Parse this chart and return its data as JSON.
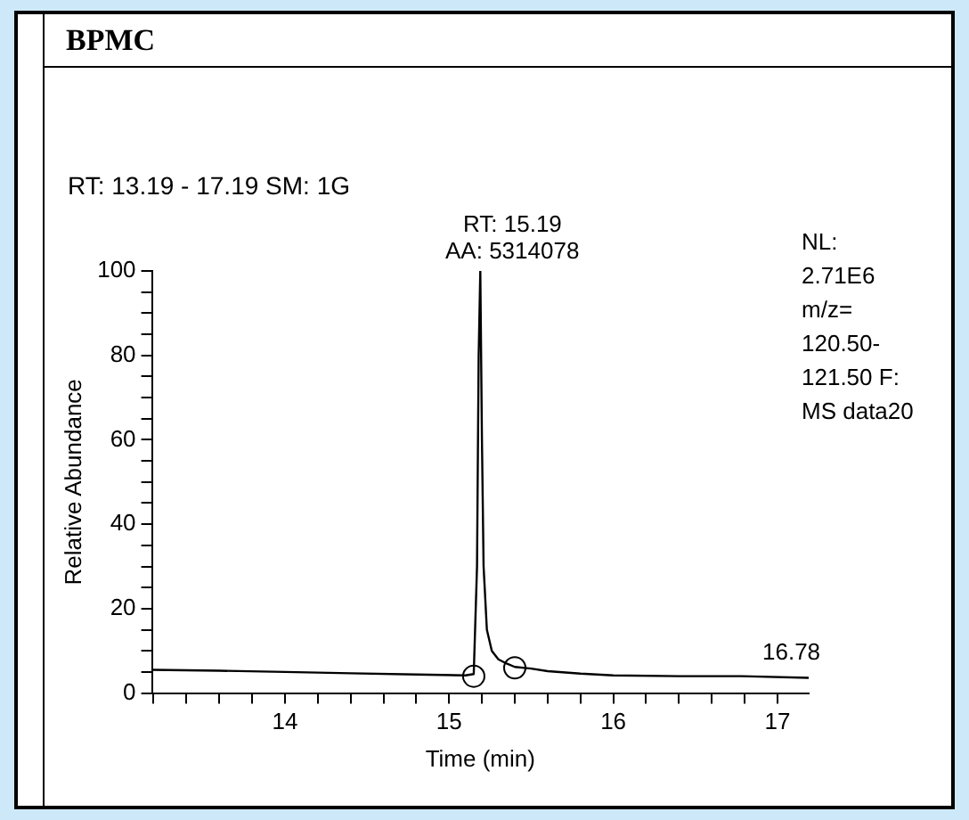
{
  "chart_data": {
    "type": "line",
    "title": "BPMC",
    "xlabel": "Time (min)",
    "ylabel": "Relative Abundance",
    "xlim": [
      13.19,
      17.19
    ],
    "xticks": [
      {
        "value": 13.2,
        "label": null
      },
      {
        "value": 13.4,
        "label": null
      },
      {
        "value": 13.6,
        "label": null
      },
      {
        "value": 13.8,
        "label": null
      },
      14,
      {
        "value": 14.2,
        "label": null
      },
      {
        "value": 14.4,
        "label": null
      },
      {
        "value": 14.6,
        "label": null
      },
      {
        "value": 14.8,
        "label": null
      },
      15,
      {
        "value": 15.2,
        "label": null
      },
      {
        "value": 15.4,
        "label": null
      },
      {
        "value": 15.6,
        "label": null
      },
      {
        "value": 15.8,
        "label": null
      },
      16,
      {
        "value": 16.2,
        "label": null
      },
      {
        "value": 16.4,
        "label": null
      },
      {
        "value": 16.6,
        "label": null
      },
      {
        "value": 16.8,
        "label": null
      },
      17
    ],
    "ylim": [
      0,
      100
    ],
    "yticks": [
      0,
      {
        "value": 5,
        "label": null
      },
      {
        "value": 10,
        "label": null
      },
      {
        "value": 15,
        "label": null
      },
      20,
      {
        "value": 25,
        "label": null
      },
      {
        "value": 30,
        "label": null
      },
      {
        "value": 35,
        "label": null
      },
      40,
      {
        "value": 45,
        "label": null
      },
      {
        "value": 50,
        "label": null
      },
      {
        "value": 55,
        "label": null
      },
      60,
      {
        "value": 65,
        "label": null
      },
      {
        "value": 70,
        "label": null
      },
      {
        "value": 75,
        "label": null
      },
      80,
      {
        "value": 85,
        "label": null
      },
      {
        "value": 90,
        "label": null
      },
      {
        "value": 95,
        "label": null
      },
      100
    ],
    "grid": false,
    "legend": false,
    "line_style": "solid",
    "series": [
      {
        "type": "line",
        "color": "#000000",
        "marker": "none",
        "x": [
          13.19,
          13.6,
          14.0,
          14.4,
          14.8,
          15.1,
          15.15,
          15.17,
          15.18,
          15.19,
          15.2,
          15.21,
          15.23,
          15.26,
          15.3,
          15.35,
          15.4,
          15.5,
          15.6,
          15.8,
          16.0,
          16.4,
          16.78,
          17.19
        ],
        "values": [
          5.5,
          5.3,
          5.0,
          4.7,
          4.4,
          4.2,
          4.5,
          30,
          80,
          100,
          60,
          30,
          15,
          10,
          8,
          7,
          6.2,
          5.8,
          5.2,
          4.6,
          4.2,
          4.0,
          4.0,
          3.6
        ]
      },
      {
        "type": "scatter",
        "color": "#000000",
        "marker": "circle",
        "x": [
          15.15,
          15.4
        ],
        "values": [
          4,
          6
        ]
      }
    ],
    "annotations": [
      "RT: 13.19 - 17.19   SM: 1G",
      "RT: 15.19",
      "AA: 5314078",
      "16.78",
      "NL:\n2.71E6\nm/z=\n120.50-\n121.50 F:\nMS data20"
    ]
  }
}
